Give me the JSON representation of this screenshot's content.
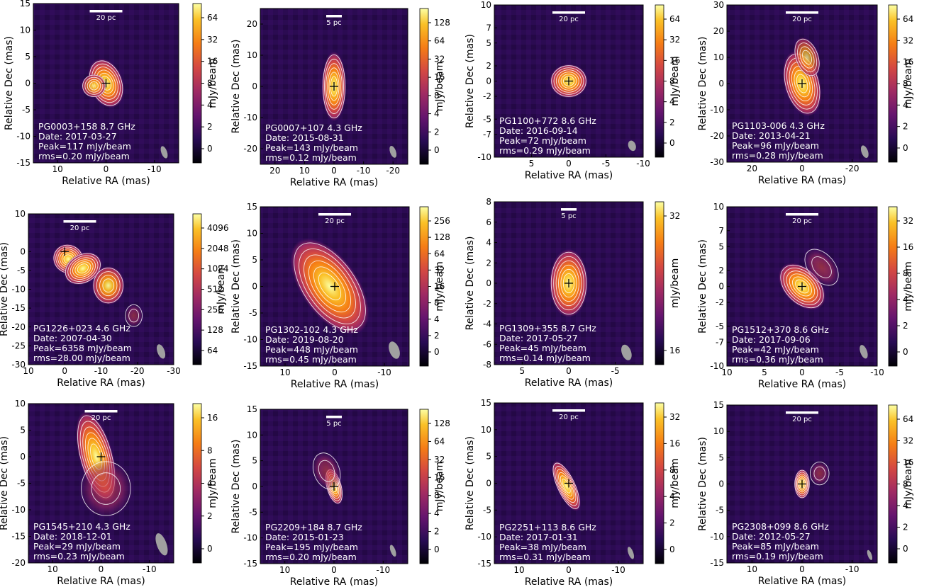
{
  "common": {
    "xlabel": "Relative RA (mas)",
    "ylabel": "Relative Dec (mas)",
    "cbar_label": "mJy/beam"
  },
  "colors": {
    "background": "#2a0b4e",
    "contour": "#ffffff",
    "neg_contour": "#7a1020",
    "text": "#ffffff"
  },
  "chart_data": [
    {
      "type": "heatmap",
      "source": "PG0003+158",
      "freq": "8.7 GHz",
      "date": "Date: 2017-03-27",
      "peak": "Peak=117 mJy/beam",
      "rms": "rms=0.20 mJy/beam",
      "scalebar": "20 pc",
      "xlim": [
        15,
        -15
      ],
      "ylim": [
        -15,
        15
      ],
      "xticks": [
        10,
        0,
        -10
      ],
      "yticks": [
        15,
        10,
        5,
        0,
        -5,
        -10,
        -15
      ],
      "cbar_ticks": [
        "64",
        "32",
        "16",
        "8",
        "4",
        "2",
        "0"
      ],
      "cbar_type": "log",
      "components": [
        {
          "x": 0,
          "y": 0,
          "rx": 2.2,
          "ry": 3.0,
          "ang": -20,
          "f": 1.0
        },
        {
          "x": 2.5,
          "y": -0.5,
          "rx": 1.6,
          "ry": 1.4,
          "ang": 0,
          "f": 0.35
        }
      ],
      "beam": {
        "x": -12,
        "y": -13,
        "rx": 0.6,
        "ry": 1.2
      }
    },
    {
      "type": "heatmap",
      "source": "PG0007+107",
      "freq": "4.3 GHz",
      "date": "Date: 2015-08-31",
      "peak": "Peak=143 mJy/beam",
      "rms": "rms=0.12 mJy/beam",
      "scalebar": "5 pc",
      "xlim": [
        25,
        -25
      ],
      "ylim": [
        -25,
        25
      ],
      "xticks": [
        20,
        10,
        0,
        -10,
        -20
      ],
      "yticks": [
        20,
        10,
        0,
        -10,
        -20
      ],
      "cbar_ticks": [
        "128",
        "64",
        "32",
        "16",
        "8",
        "4",
        "2",
        "0"
      ],
      "cbar_type": "log",
      "components": [
        {
          "x": 0,
          "y": 0,
          "rx": 2.6,
          "ry": 7.0,
          "ang": 0,
          "f": 1.0
        }
      ],
      "beam": {
        "x": -20,
        "y": -21,
        "rx": 1.0,
        "ry": 2.0
      }
    },
    {
      "type": "heatmap",
      "source": "PG1100+772",
      "freq": "8.6 GHz",
      "date": "Date: 2016-09-14",
      "peak": "Peak=72 mJy/beam",
      "rms": "rms=0.29 mJy/beam",
      "scalebar": "20 pc",
      "xlim": [
        10,
        -10
      ],
      "ylim": [
        -10,
        10
      ],
      "xticks": [
        5,
        0,
        -5,
        -10
      ],
      "yticks": [
        10,
        7,
        5,
        2,
        0,
        -2,
        -5,
        -7,
        -10
      ],
      "cbar_ticks": [
        "64",
        "32",
        "16",
        "8",
        "4",
        "2",
        "0"
      ],
      "cbar_type": "log",
      "components": [
        {
          "x": 0,
          "y": 0,
          "rx": 1.6,
          "ry": 1.4,
          "ang": 0,
          "f": 1.0
        }
      ],
      "beam": {
        "x": -8.5,
        "y": -8.5,
        "rx": 0.5,
        "ry": 0.7
      }
    },
    {
      "type": "heatmap",
      "source": "PG1103-006",
      "freq": "4.3 GHz",
      "date": "Date: 2013-04-21",
      "peak": "Peak=96 mJy/beam",
      "rms": "rms=0.28 mJy/beam",
      "scalebar": "20 pc",
      "xlim": [
        30,
        -30
      ],
      "ylim": [
        -30,
        30
      ],
      "xticks": [
        20,
        0,
        -20
      ],
      "yticks": [
        30,
        20,
        10,
        0,
        -10,
        -20,
        -30
      ],
      "cbar_ticks": [
        "64",
        "32",
        "16",
        "8",
        "4",
        "2",
        "0"
      ],
      "cbar_type": "log",
      "components": [
        {
          "x": 0,
          "y": 0,
          "rx": 4.5,
          "ry": 8.0,
          "ang": -15,
          "f": 1.0
        },
        {
          "x": -2,
          "y": 10,
          "rx": 3,
          "ry": 5,
          "ang": -20,
          "f": 0.25
        }
      ],
      "beam": {
        "x": -25,
        "y": -26,
        "rx": 1.3,
        "ry": 2.5
      }
    },
    {
      "type": "heatmap",
      "source": "PG1226+023",
      "freq": "4.6 GHz",
      "date": "Date: 2007-04-30",
      "peak": "Peak=6358 mJy/beam",
      "rms": "rms=28.00 mJy/beam",
      "scalebar": "20 pc",
      "xlim": [
        10,
        -30
      ],
      "ylim": [
        -30,
        10
      ],
      "xticks": [
        10,
        0,
        -10,
        -20,
        -30
      ],
      "yticks": [
        10,
        0,
        -5,
        -10,
        -15,
        -20,
        -25,
        -30
      ],
      "cbar_ticks": [
        "4096",
        "2048",
        "1024",
        "512",
        "256",
        "128",
        "64"
      ],
      "cbar_type": "log",
      "components": [
        {
          "x": -1,
          "y": -2,
          "rx": 2.8,
          "ry": 2.5,
          "ang": 30,
          "f": 1.0
        },
        {
          "x": -5,
          "y": -4.5,
          "rx": 3.5,
          "ry": 2.5,
          "ang": -30,
          "f": 0.55
        },
        {
          "x": -12,
          "y": -9,
          "rx": 2.8,
          "ry": 3.2,
          "ang": 0,
          "f": 0.45
        },
        {
          "x": -19,
          "y": -17,
          "rx": 1.6,
          "ry": 2.0,
          "ang": 0,
          "f": 0.05
        }
      ],
      "beam": {
        "x": -26.5,
        "y": -26.5,
        "rx": 1.0,
        "ry": 2.0
      }
    },
    {
      "type": "heatmap",
      "source": "PG1302-102",
      "freq": "4.3 GHz",
      "date": "Date: 2019-08-20",
      "peak": "Peak=448 mJy/beam",
      "rms": "rms=0.45 mJy/beam",
      "scalebar": "20 pc",
      "xlim": [
        15,
        -15
      ],
      "ylim": [
        -15,
        15
      ],
      "xticks": [
        10,
        0,
        -10
      ],
      "yticks": [
        15,
        10,
        5,
        0,
        -5,
        -10,
        -15
      ],
      "cbar_ticks": [
        "256",
        "128",
        "64",
        "32",
        "16",
        "8",
        "4",
        "2",
        "0"
      ],
      "cbar_type": "log",
      "components": [
        {
          "x": 1,
          "y": 0,
          "rx": 3.6,
          "ry": 6.5,
          "ang": -35,
          "f": 1.0
        }
      ],
      "beam": {
        "x": -12,
        "y": -12,
        "rx": 1.0,
        "ry": 1.7
      }
    },
    {
      "type": "heatmap",
      "source": "PG1309+355",
      "freq": "8.7 GHz",
      "date": "Date: 2017-05-27",
      "peak": "Peak=45 mJy/beam",
      "rms": "rms=0.14 mJy/beam",
      "scalebar": "5 pc",
      "xlim": [
        8,
        -8
      ],
      "ylim": [
        -8,
        8
      ],
      "xticks": [
        5,
        0,
        -5
      ],
      "yticks": [
        8,
        6,
        4,
        2,
        0,
        -2,
        -4,
        -6,
        -8
      ],
      "cbar_ticks": [
        "32",
        "16"
      ],
      "cbar_type": "log",
      "components": [
        {
          "x": 0,
          "y": 0,
          "rx": 1.3,
          "ry": 2.1,
          "ang": 0,
          "f": 1.0
        }
      ],
      "beam": {
        "x": -6.2,
        "y": -6.8,
        "rx": 0.5,
        "ry": 0.8
      }
    },
    {
      "type": "heatmap",
      "source": "PG1512+370",
      "freq": "8.6 GHz",
      "date": "Date: 2017-09-06",
      "peak": "Peak=42 mJy/beam",
      "rms": "rms=0.36 mJy/beam",
      "scalebar": "20 pc",
      "xlim": [
        10,
        -10
      ],
      "ylim": [
        -10,
        10
      ],
      "xticks": [
        10,
        5,
        0,
        -5,
        -10
      ],
      "yticks": [
        10,
        7,
        5,
        2,
        0,
        -2,
        -5,
        -7,
        -10
      ],
      "cbar_ticks": [
        "32",
        "16",
        "8",
        "4",
        "2",
        "0"
      ],
      "cbar_type": "log",
      "components": [
        {
          "x": 0,
          "y": 0,
          "rx": 1.5,
          "ry": 2.2,
          "ang": -45,
          "f": 1.0
        },
        {
          "x": -2.6,
          "y": 2.4,
          "rx": 1.2,
          "ry": 1.8,
          "ang": -40,
          "f": 0.12
        }
      ],
      "beam": {
        "x": -8.2,
        "y": -8.2,
        "rx": 0.45,
        "ry": 0.9
      }
    },
    {
      "type": "heatmap",
      "source": "PG1545+210",
      "freq": "4.3 GHz",
      "date": "Date: 2018-12-01",
      "peak": "Peak=29 mJy/beam",
      "rms": "rms=0.23 mJy/beam",
      "scalebar": "20 pc",
      "xlim": [
        15,
        -15
      ],
      "ylim": [
        -20,
        10
      ],
      "xticks": [
        10,
        0,
        -10
      ],
      "yticks": [
        10,
        5,
        0,
        -5,
        -10,
        -15,
        -20
      ],
      "cbar_ticks": [
        "16",
        "8",
        "4",
        "2",
        "0"
      ],
      "cbar_type": "log",
      "components": [
        {
          "x": 1,
          "y": 0,
          "rx": 2.2,
          "ry": 5.5,
          "ang": -15,
          "f": 1.0
        },
        {
          "x": -1,
          "y": -6,
          "rx": 3.5,
          "ry": 3.5,
          "ang": 0,
          "f": 0.12
        }
      ],
      "beam": {
        "x": -12.5,
        "y": -16.5,
        "rx": 1.0,
        "ry": 2.2
      }
    },
    {
      "type": "heatmap",
      "source": "PG2209+184",
      "freq": "8.7 GHz",
      "date": "Date: 2015-01-23",
      "peak": "Peak=195 mJy/beam",
      "rms": "rms=0.20 mJy/beam",
      "scalebar": "5 pc",
      "xlim": [
        15,
        -15
      ],
      "ylim": [
        -15,
        15
      ],
      "xticks": [
        10,
        0,
        -10
      ],
      "yticks": [
        15,
        10,
        5,
        0,
        -5,
        -10,
        -15
      ],
      "cbar_ticks": [
        "128",
        "64",
        "32",
        "16",
        "8",
        "4",
        "2",
        "0"
      ],
      "cbar_type": "log",
      "components": [
        {
          "x": 0,
          "y": 0,
          "rx": 1.0,
          "ry": 2.3,
          "ang": -15,
          "f": 1.0
        },
        {
          "x": 1.5,
          "y": 3,
          "rx": 1.8,
          "ry": 2.5,
          "ang": -20,
          "f": 0.1
        }
      ],
      "beam": {
        "x": -12,
        "y": -12.5,
        "rx": 0.5,
        "ry": 1.2
      }
    },
    {
      "type": "heatmap",
      "source": "PG2251+113",
      "freq": "8.6 GHz",
      "date": "Date: 2017-01-31",
      "peak": "Peak=38 mJy/beam",
      "rms": "rms=0.31 mJy/beam",
      "scalebar": "20 pc",
      "xlim": [
        15,
        -15
      ],
      "ylim": [
        -15,
        15
      ],
      "xticks": [
        10,
        0,
        -10
      ],
      "yticks": [
        15,
        10,
        5,
        0,
        -5,
        -10,
        -15
      ],
      "cbar_ticks": [
        "32",
        "16",
        "8",
        "4",
        "2",
        "0"
      ],
      "cbar_type": "log",
      "components": [
        {
          "x": 0.5,
          "y": -0.5,
          "rx": 1.2,
          "ry": 3.2,
          "ang": -25,
          "f": 1.0
        }
      ],
      "beam": {
        "x": -12.5,
        "y": -13,
        "rx": 0.5,
        "ry": 1.2
      }
    },
    {
      "type": "heatmap",
      "source": "PG2308+099",
      "freq": "8.6 GHz",
      "date": "Date: 2012-05-27",
      "peak": "Peak=85 mJy/beam",
      "rms": "rms=0.19 mJy/beam",
      "scalebar": "20 pc",
      "xlim": [
        15,
        -15
      ],
      "ylim": [
        -15,
        15
      ],
      "xticks": [
        10,
        0,
        -10
      ],
      "yticks": [
        15,
        10,
        5,
        0,
        -5,
        -10,
        -15
      ],
      "cbar_ticks": [
        "64",
        "32",
        "16",
        "8",
        "4",
        "2",
        "0"
      ],
      "cbar_type": "log",
      "components": [
        {
          "x": 0,
          "y": 0,
          "rx": 1.0,
          "ry": 1.8,
          "ang": 0,
          "f": 1.0
        },
        {
          "x": -3.5,
          "y": 2,
          "rx": 1.3,
          "ry": 1.5,
          "ang": 0,
          "f": 0.08
        }
      ],
      "beam": {
        "x": -13.5,
        "y": -13.5,
        "rx": 0.4,
        "ry": 1.0
      }
    }
  ]
}
